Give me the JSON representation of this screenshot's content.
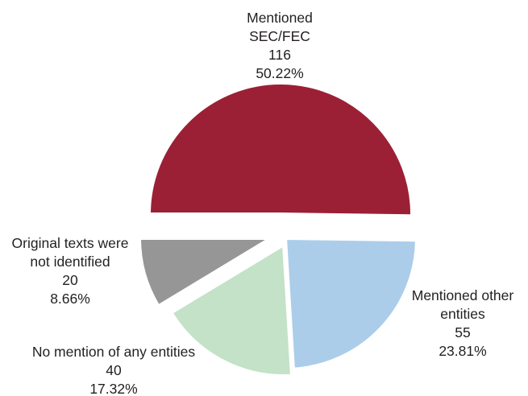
{
  "chart_data": {
    "type": "pie",
    "title": "",
    "slices": [
      {
        "name_lines": [
          "Mentioned",
          "SEC/FEC"
        ],
        "value": 116,
        "percent": "50.22%",
        "color": "#9b2035"
      },
      {
        "name_lines": [
          "Mentioned other",
          "entities"
        ],
        "value": 55,
        "percent": "23.81%",
        "color": "#abcdea"
      },
      {
        "name_lines": [
          "No mention of any entities"
        ],
        "value": 40,
        "percent": "17.32%",
        "color": "#c3e2c7"
      },
      {
        "name_lines": [
          "Original texts were",
          "not identified"
        ],
        "value": 20,
        "percent": "8.66%",
        "color": "#969696"
      }
    ],
    "legend": "none",
    "labels": "outside, each slice labeled with name, count and percent"
  }
}
